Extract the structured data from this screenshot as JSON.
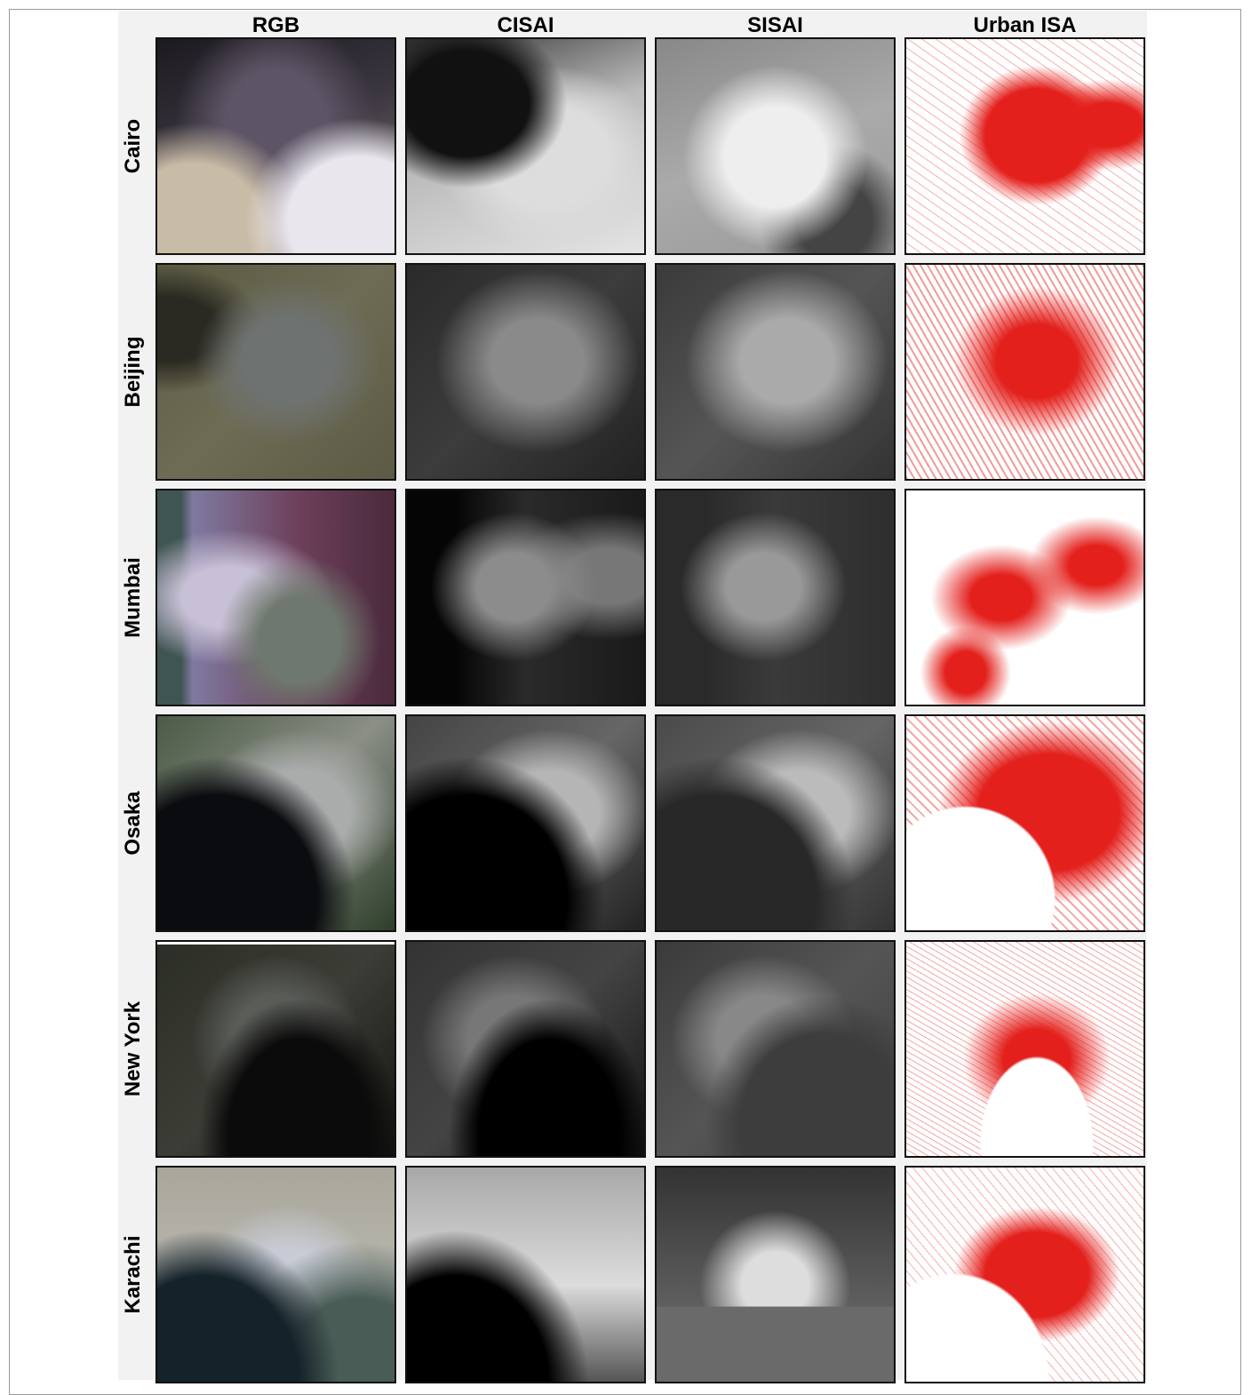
{
  "columns": [
    "RGB",
    "CISAI",
    "SISAI",
    "Urban ISA"
  ],
  "rows": [
    "Cairo",
    "Beijing",
    "Mumbai",
    "Osaka",
    "New York",
    "Karachi"
  ]
}
